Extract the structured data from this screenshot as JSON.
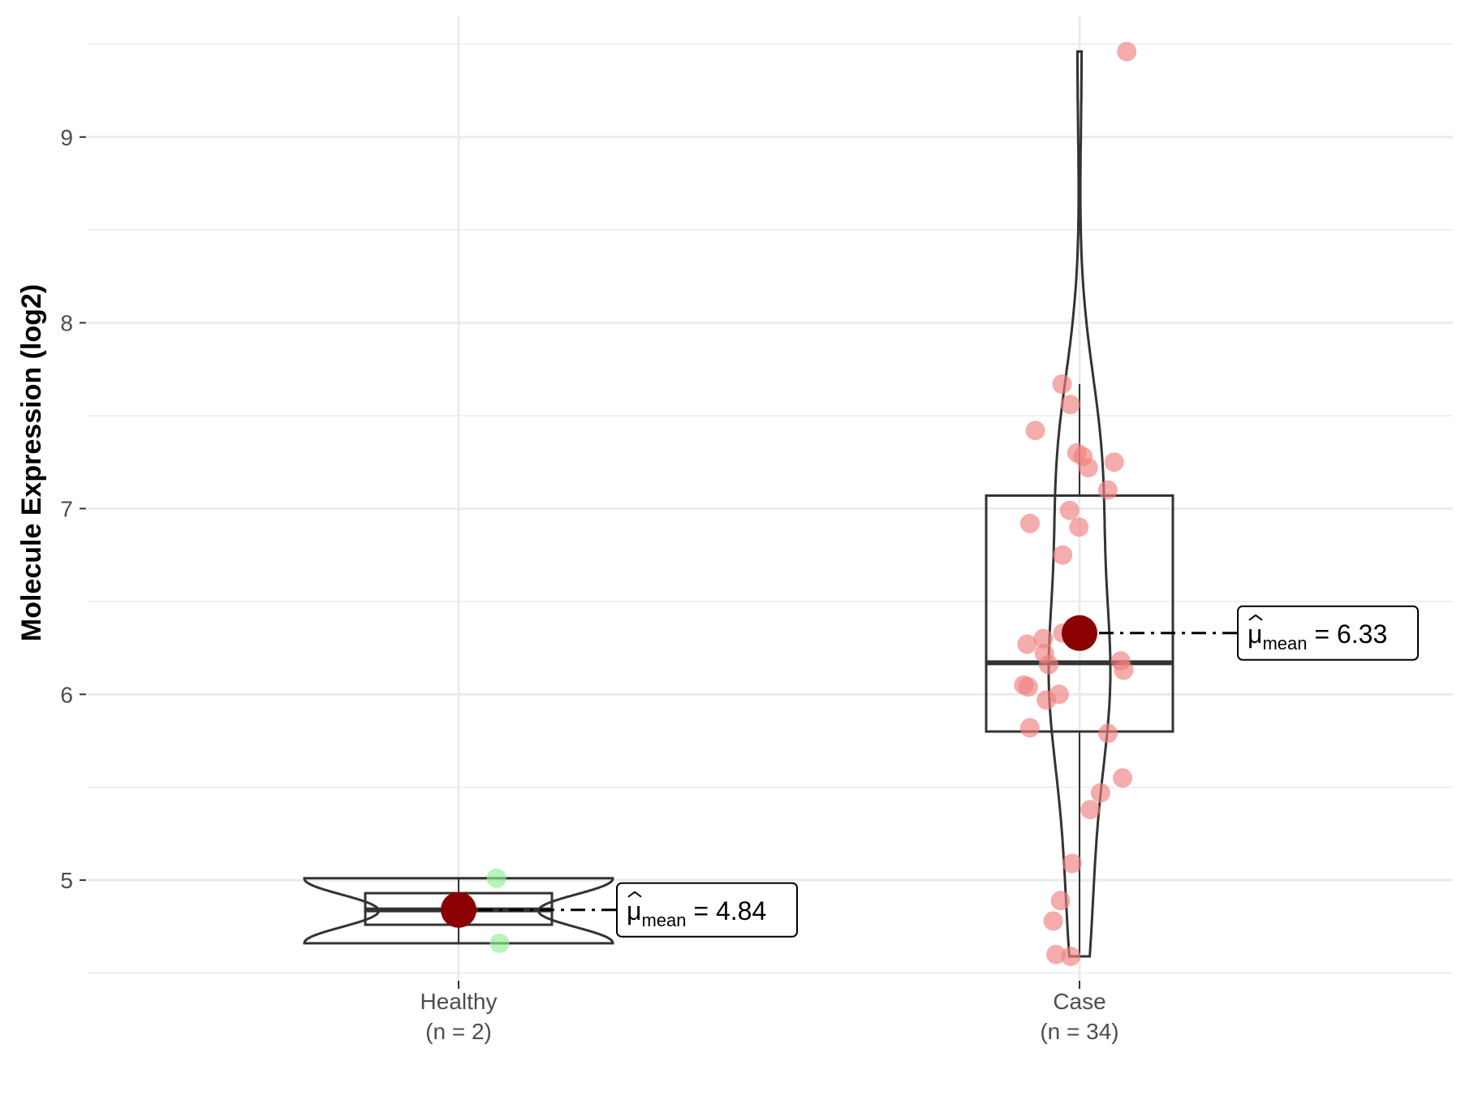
{
  "chart_data": {
    "type": "violin-box-scatter",
    "ylabel": "Molecule Expression (log2)",
    "ylim": [
      4.45,
      9.65
    ],
    "y_ticks": [
      5,
      6,
      7,
      8,
      9
    ],
    "grid": true,
    "groups": [
      {
        "name": "Healthy",
        "n_label": "(n = 2)",
        "point_color": "#90ee90",
        "points": [
          5.01,
          4.66
        ],
        "box": {
          "q1": 4.76,
          "median": 4.84,
          "q3": 4.93,
          "whisker_low": 4.66,
          "whisker_high": 5.01
        },
        "mean": 4.84,
        "mean_label": "4.84"
      },
      {
        "name": "Case",
        "n_label": "(n = 34)",
        "point_color": "#f08080",
        "points": [
          9.46,
          7.67,
          7.56,
          7.42,
          7.3,
          7.28,
          7.25,
          7.22,
          7.1,
          6.99,
          6.92,
          6.9,
          6.75,
          6.33,
          6.3,
          6.27,
          6.18,
          6.16,
          6.13,
          6.05,
          6.04,
          6.0,
          5.97,
          5.82,
          5.79,
          5.55,
          5.47,
          5.38,
          5.09,
          4.89,
          4.78,
          4.6,
          4.59,
          6.22
        ],
        "box": {
          "q1": 5.8,
          "median": 6.17,
          "q3": 7.07,
          "whisker_low": 4.59,
          "whisker_high": 7.67
        },
        "mean": 6.33,
        "mean_label": "6.33"
      }
    ],
    "mean_color": "#8b0000",
    "annotation_symbol": "μ",
    "annotation_subscript": "mean"
  }
}
